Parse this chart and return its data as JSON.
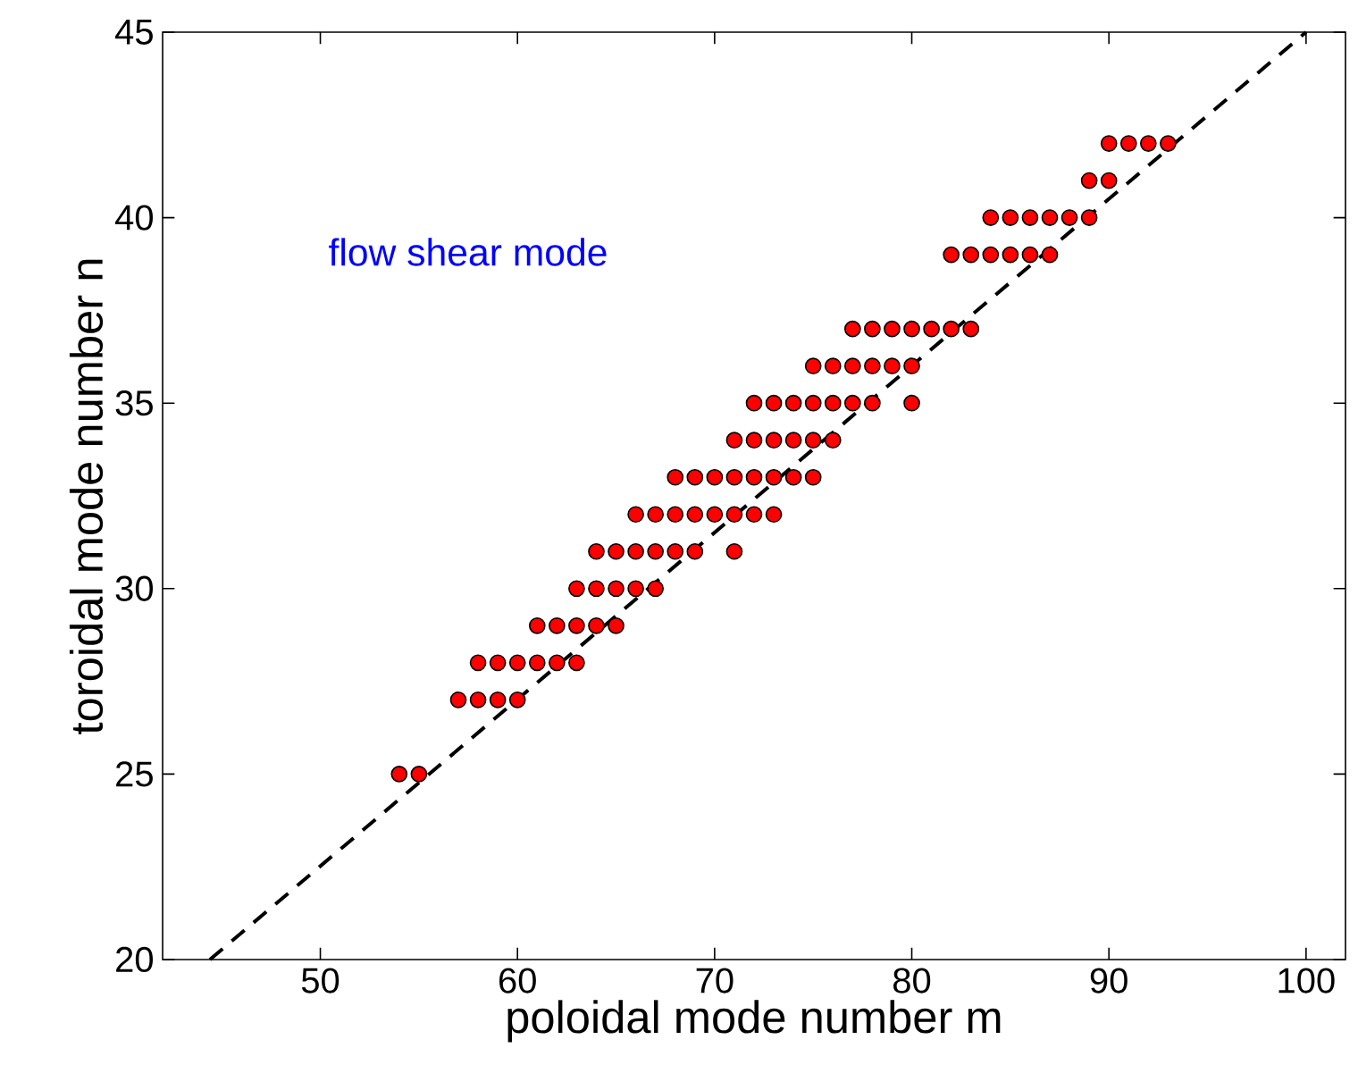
{
  "chart_data": {
    "type": "scatter",
    "xlabel": "poloidal mode number m",
    "ylabel": "toroidal mode number n",
    "annotations": [
      "flow shear mode"
    ],
    "xlim": [
      42,
      102
    ],
    "ylim": [
      20,
      45
    ],
    "xticks": [
      50,
      60,
      70,
      80,
      90,
      100
    ],
    "yticks": [
      20,
      25,
      30,
      35,
      40,
      45
    ],
    "marker": "circle",
    "series": [
      {
        "color": "#ff0000",
        "x": [
          54,
          55,
          57,
          58,
          59,
          60,
          58,
          59,
          60,
          61,
          62,
          63,
          61,
          62,
          63,
          64,
          65,
          63,
          64,
          65,
          66,
          67,
          64,
          65,
          66,
          67,
          68,
          69,
          71,
          66,
          67,
          68,
          69,
          70,
          71,
          72,
          73,
          68,
          69,
          70,
          71,
          72,
          73,
          74,
          75,
          71,
          72,
          73,
          74,
          75,
          76,
          72,
          73,
          74,
          75,
          76,
          77,
          78,
          80,
          75,
          76,
          77,
          78,
          79,
          80,
          77,
          78,
          79,
          80,
          81,
          82,
          83,
          82,
          83,
          84,
          85,
          86,
          87,
          84,
          85,
          86,
          87,
          88,
          89,
          89,
          90,
          90,
          91,
          92,
          93
        ],
        "values": [
          25,
          25,
          27,
          27,
          27,
          27,
          28,
          28,
          28,
          28,
          28,
          28,
          29,
          29,
          29,
          29,
          29,
          30,
          30,
          30,
          30,
          30,
          31,
          31,
          31,
          31,
          31,
          31,
          31,
          32,
          32,
          32,
          32,
          32,
          32,
          32,
          32,
          33,
          33,
          33,
          33,
          33,
          33,
          33,
          33,
          34,
          34,
          34,
          34,
          34,
          34,
          35,
          35,
          35,
          35,
          35,
          35,
          35,
          35,
          36,
          36,
          36,
          36,
          36,
          36,
          37,
          37,
          37,
          37,
          37,
          37,
          37,
          39,
          39,
          39,
          39,
          39,
          39,
          40,
          40,
          40,
          40,
          40,
          40,
          41,
          41,
          42,
          42,
          42,
          42
        ]
      },
      {
        "type": "line",
        "color": "#000000",
        "line_style": "dashed",
        "marker": "none",
        "x": [
          44.4,
          100
        ],
        "values": [
          20,
          45
        ]
      }
    ]
  }
}
